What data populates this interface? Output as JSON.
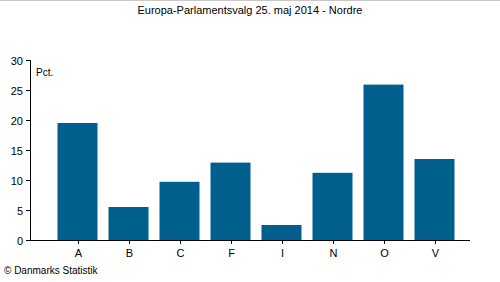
{
  "chart_data": {
    "type": "bar",
    "title": "Europa-Parlamentsvalg 25. maj 2014 - Nordre",
    "ylabel": "Pct.",
    "source": "© Danmarks Statistik",
    "categories": [
      "A",
      "B",
      "C",
      "F",
      "I",
      "N",
      "O",
      "V"
    ],
    "values": [
      19.5,
      5.5,
      9.7,
      12.9,
      2.5,
      11.2,
      25.9,
      13.5
    ],
    "color": "#005f8c",
    "ylim": [
      0,
      30
    ],
    "yticks": [
      0,
      5,
      10,
      15,
      20,
      25,
      30
    ],
    "grid": false
  }
}
